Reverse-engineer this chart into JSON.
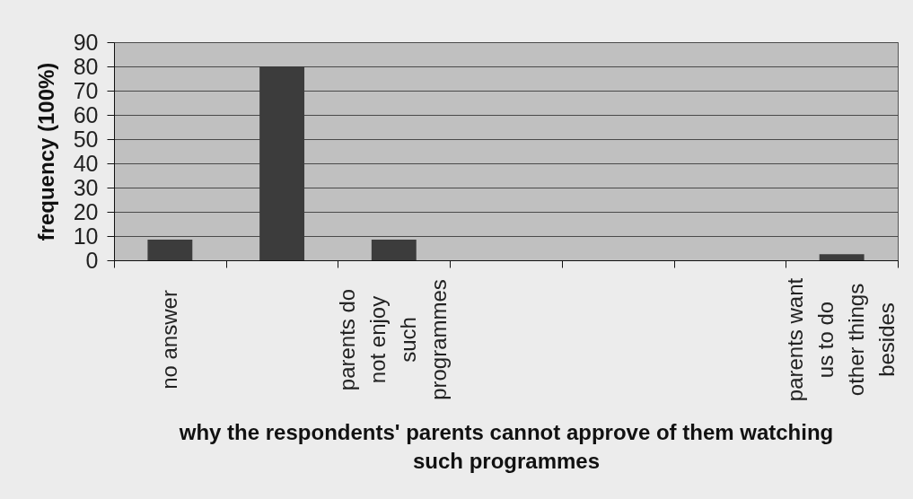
{
  "chart_data": {
    "type": "bar",
    "xlabel": "why the respondents' parents cannot approve of them watching such programmes",
    "ylabel": "frequency (100%)",
    "categories": [
      "no answer",
      null,
      "parents do not enjoy such programmes",
      null,
      null,
      null,
      "parents want us to do other things besides"
    ],
    "values": [
      8.5,
      80,
      8.5,
      0,
      0,
      0,
      2.5
    ],
    "color": "#3c3c3c",
    "ylim": [
      0,
      90
    ],
    "yticks": [
      0,
      10,
      20,
      30,
      40,
      50,
      60,
      70,
      80,
      90
    ],
    "grid": "y"
  }
}
